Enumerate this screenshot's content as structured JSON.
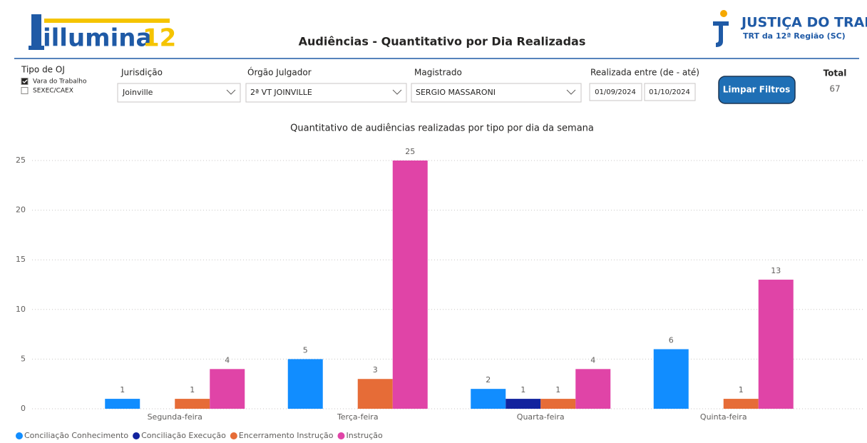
{
  "header": {
    "logo_text": "illumina",
    "logo_number": "12",
    "title": "Audiências - Quantitativo por Dia Realizadas",
    "org_name": "JUSTIÇA DO TRABALHO",
    "org_subtitle": "TRT da 12ª Região (SC)"
  },
  "filters": {
    "tipo_oj": {
      "label": "Tipo de OJ",
      "options": [
        {
          "label": "Vara do Trabalho",
          "checked": true
        },
        {
          "label": "SEXEC/CAEX",
          "checked": false
        }
      ]
    },
    "jurisdicao": {
      "label": "Jurisdição",
      "value": "Joinville"
    },
    "orgao": {
      "label": "Órgão Julgador",
      "value": "2ª VT JOINVILLE"
    },
    "magistrado": {
      "label": "Magistrado",
      "value": "SERGIO MASSARONI"
    },
    "periodo": {
      "label": "Realizada entre (de - até)",
      "from": "01/09/2024",
      "to": "01/10/2024"
    },
    "button": "Limpar Filtros",
    "total": {
      "label": "Total",
      "value": 67
    }
  },
  "chart_data": {
    "type": "bar",
    "title": "Quantitativo de audiências realizadas por tipo por dia da semana",
    "categories": [
      "Segunda-feira",
      "Terça-feira",
      "Quarta-feira",
      "Quinta-feira"
    ],
    "series": [
      {
        "name": "Conciliação Conhecimento",
        "color": "#118dff",
        "values": [
          1,
          5,
          2,
          6
        ]
      },
      {
        "name": "Conciliação Execução",
        "color": "#12239e",
        "values": [
          null,
          null,
          1,
          null
        ]
      },
      {
        "name": "Encerramento Instrução",
        "color": "#e66c37",
        "values": [
          1,
          3,
          1,
          1
        ]
      },
      {
        "name": "Instrução",
        "color": "#e044a7",
        "values": [
          4,
          25,
          4,
          13
        ]
      }
    ],
    "ylim": [
      0,
      25
    ],
    "yticks": [
      0,
      5,
      10,
      15,
      20,
      25
    ],
    "grid": true,
    "legend": "bottom-left"
  }
}
